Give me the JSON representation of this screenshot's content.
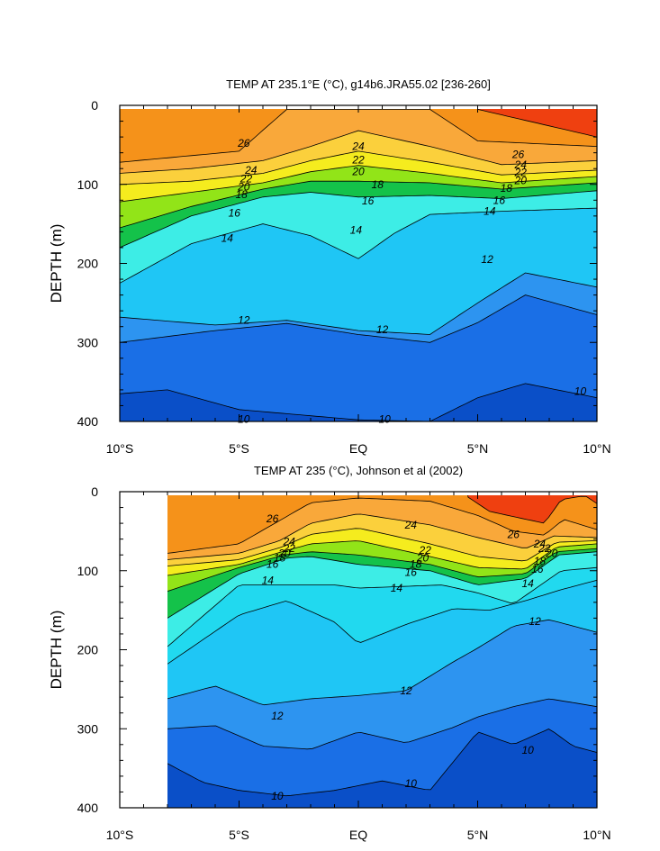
{
  "chart_data": [
    {
      "type": "contour",
      "title": "TEMP AT 235.1°E (°C), g14b6.JRA55.02 [236-260]",
      "xlabel": "",
      "ylabel": "DEPTH (m)",
      "xlim": [
        -10,
        10
      ],
      "ylim": [
        400,
        0
      ],
      "x_ticks": [
        {
          "value": -10,
          "label": "10°S"
        },
        {
          "value": -5,
          "label": "5°S"
        },
        {
          "value": 0,
          "label": "EQ"
        },
        {
          "value": 5,
          "label": "5°N"
        },
        {
          "value": 10,
          "label": "10°N"
        }
      ],
      "y_ticks": [
        {
          "value": 0,
          "label": "0"
        },
        {
          "value": 100,
          "label": "100"
        },
        {
          "value": 200,
          "label": "200"
        },
        {
          "value": 300,
          "label": "300"
        },
        {
          "value": 400,
          "label": "400"
        }
      ],
      "data_x_range": [
        -10,
        10
      ],
      "contour_interval": 1,
      "contours": [
        {
          "level": 27,
          "lat": [
            -10,
            -5,
            0,
            5,
            10
          ],
          "depth": [
            null,
            null,
            null,
            5,
            40
          ]
        },
        {
          "level": 26,
          "lat": [
            -10,
            -5,
            -3,
            -0.3,
            3,
            5,
            10
          ],
          "depth": [
            72,
            58,
            5,
            5,
            5,
            45,
            52
          ]
        },
        {
          "level": 24,
          "lat": [
            -10,
            -7,
            -4,
            -2,
            0,
            3,
            6,
            10
          ],
          "depth": [
            86,
            80,
            70,
            52,
            32,
            52,
            75,
            70
          ]
        },
        {
          "level": 22,
          "lat": [
            -10,
            -7,
            -4,
            -2,
            0,
            3,
            6,
            10
          ],
          "depth": [
            100,
            96,
            86,
            70,
            58,
            72,
            88,
            82
          ]
        },
        {
          "level": 20,
          "lat": [
            -10,
            -7,
            -4,
            -2,
            0,
            3,
            6,
            10
          ],
          "depth": [
            122,
            110,
            98,
            84,
            76,
            86,
            98,
            90
          ]
        },
        {
          "level": 18,
          "lat": [
            -10,
            -7,
            -4,
            -2,
            0,
            3,
            6,
            10
          ],
          "depth": [
            155,
            128,
            106,
            96,
            96,
            98,
            106,
            98
          ]
        },
        {
          "level": 16,
          "lat": [
            -10,
            -7,
            -4,
            -2,
            0,
            3,
            6,
            10
          ],
          "depth": [
            180,
            140,
            116,
            110,
            116,
            114,
            118,
            108
          ]
        },
        {
          "level": 14,
          "lat": [
            -10,
            -7,
            -4,
            -2,
            0,
            1.5,
            3,
            6,
            10
          ],
          "depth": [
            225,
            175,
            150,
            165,
            194,
            162,
            138,
            134,
            130
          ]
        },
        {
          "level": 12,
          "lat": [
            -10,
            -6,
            -3,
            0,
            3,
            5,
            7,
            10
          ],
          "depth": [
            268,
            278,
            272,
            285,
            290,
            250,
            212,
            230
          ]
        },
        {
          "level": 11,
          "lat": [
            -10,
            -6,
            -3,
            0,
            3,
            5,
            7,
            10
          ],
          "depth": [
            300,
            285,
            276,
            290,
            300,
            275,
            240,
            265
          ]
        },
        {
          "level": 10,
          "lat": [
            -10,
            -8,
            -5,
            0,
            3,
            5,
            7,
            10
          ],
          "depth": [
            365,
            360,
            385,
            398,
            400,
            370,
            352,
            370
          ]
        }
      ],
      "contour_labels": [
        {
          "text": "26",
          "x": -4.8,
          "y": 48
        },
        {
          "text": "24",
          "x": -4.5,
          "y": 82
        },
        {
          "text": "22",
          "x": -4.7,
          "y": 93
        },
        {
          "text": "20",
          "x": -4.8,
          "y": 103
        },
        {
          "text": "18",
          "x": -4.9,
          "y": 113
        },
        {
          "text": "16",
          "x": -5.2,
          "y": 136
        },
        {
          "text": "14",
          "x": -5.5,
          "y": 168
        },
        {
          "text": "24",
          "x": 0,
          "y": 52
        },
        {
          "text": "22",
          "x": 0,
          "y": 69
        },
        {
          "text": "20",
          "x": 0,
          "y": 84
        },
        {
          "text": "18",
          "x": 0.8,
          "y": 100
        },
        {
          "text": "16",
          "x": 0.4,
          "y": 121
        },
        {
          "text": "14",
          "x": -0.1,
          "y": 158
        },
        {
          "text": "26",
          "x": 6.7,
          "y": 62
        },
        {
          "text": "24",
          "x": 6.8,
          "y": 75
        },
        {
          "text": "22",
          "x": 6.8,
          "y": 85
        },
        {
          "text": "20",
          "x": 6.8,
          "y": 95
        },
        {
          "text": "18",
          "x": 6.2,
          "y": 105
        },
        {
          "text": "16",
          "x": 5.9,
          "y": 120
        },
        {
          "text": "14",
          "x": 5.5,
          "y": 134
        },
        {
          "text": "12",
          "x": 5.4,
          "y": 195
        },
        {
          "text": "12",
          "x": -4.8,
          "y": 272
        },
        {
          "text": "12",
          "x": 1,
          "y": 284
        },
        {
          "text": "10",
          "x": -4.8,
          "y": 397
        },
        {
          "text": "10",
          "x": 1.1,
          "y": 397
        },
        {
          "text": "10",
          "x": 9.3,
          "y": 362
        }
      ]
    },
    {
      "type": "contour",
      "title": "TEMP AT 235 (°C), Johnson et al (2002)",
      "xlabel": "",
      "ylabel": "DEPTH (m)",
      "xlim": [
        -10,
        10
      ],
      "ylim": [
        400,
        0
      ],
      "x_ticks": [
        {
          "value": -10,
          "label": "10°S"
        },
        {
          "value": -5,
          "label": "5°S"
        },
        {
          "value": 0,
          "label": "EQ"
        },
        {
          "value": 5,
          "label": "5°N"
        },
        {
          "value": 10,
          "label": "10°N"
        }
      ],
      "y_ticks": [
        {
          "value": 0,
          "label": "0"
        },
        {
          "value": 100,
          "label": "100"
        },
        {
          "value": 200,
          "label": "200"
        },
        {
          "value": 300,
          "label": "300"
        },
        {
          "value": 400,
          "label": "400"
        }
      ],
      "data_x_range": [
        -8,
        10
      ],
      "contour_interval": 1,
      "contours": [
        {
          "level": 27,
          "lat": [
            -8,
            4.5,
            5.5,
            7.8,
            8.5,
            9.5,
            10
          ],
          "depth": [
            null,
            5,
            25,
            40,
            10,
            5,
            15
          ]
        },
        {
          "level": 26,
          "lat": [
            -8,
            -5,
            -3.5,
            -2,
            0,
            3,
            5,
            6.5,
            7.8,
            8.6,
            10
          ],
          "depth": [
            78,
            66,
            40,
            14,
            8,
            12,
            30,
            50,
            55,
            35,
            48
          ]
        },
        {
          "level": 24,
          "lat": [
            -8,
            -5,
            -3.3,
            -2,
            0,
            3,
            5,
            7,
            8.2,
            10
          ],
          "depth": [
            86,
            78,
            62,
            40,
            28,
            42,
            58,
            72,
            56,
            58
          ]
        },
        {
          "level": 22,
          "lat": [
            -8,
            -5,
            -3.2,
            -2,
            0,
            3,
            5,
            7,
            8.3,
            10
          ],
          "depth": [
            94,
            86,
            70,
            54,
            46,
            66,
            82,
            88,
            64,
            62
          ]
        },
        {
          "level": 20,
          "lat": [
            -8,
            -5,
            -3.2,
            -2,
            0,
            3,
            5,
            7,
            8.3,
            10
          ],
          "depth": [
            106,
            92,
            76,
            66,
            62,
            82,
            96,
            98,
            70,
            66
          ]
        },
        {
          "level": 18,
          "lat": [
            -8,
            -5,
            -3.1,
            -2,
            0,
            3,
            5,
            7,
            8.3,
            10
          ],
          "depth": [
            126,
            96,
            80,
            76,
            80,
            92,
            108,
            104,
            76,
            72
          ]
        },
        {
          "level": 16,
          "lat": [
            -8,
            -5,
            -3,
            -2,
            0,
            3,
            5,
            7,
            8.4,
            10
          ],
          "depth": [
            160,
            104,
            84,
            82,
            92,
            100,
            118,
            110,
            80,
            76
          ]
        },
        {
          "level": 14,
          "lat": [
            -8,
            -5,
            -3,
            -1,
            0,
            1.8,
            3.5,
            5,
            6.5,
            8.5,
            10
          ],
          "depth": [
            196,
            118,
            118,
            118,
            122,
            120,
            118,
            128,
            142,
            100,
            96
          ]
        },
        {
          "level": 13,
          "lat": [
            -8,
            -5,
            -3,
            -1,
            0,
            2,
            4,
            5.5,
            7,
            8.5,
            10
          ],
          "depth": [
            218,
            156,
            138,
            165,
            192,
            168,
            148,
            150,
            138,
            124,
            112
          ]
        },
        {
          "level": 12,
          "lat": [
            -8,
            -6,
            -4,
            -2,
            0,
            2,
            4,
            5,
            6.5,
            8,
            10
          ],
          "depth": [
            262,
            246,
            270,
            262,
            258,
            252,
            215,
            198,
            170,
            162,
            178
          ]
        },
        {
          "level": 11,
          "lat": [
            -8,
            -6,
            -4,
            -2,
            0,
            2,
            4,
            5,
            6.5,
            8,
            10
          ],
          "depth": [
            300,
            296,
            322,
            326,
            304,
            318,
            298,
            285,
            272,
            262,
            272
          ]
        },
        {
          "level": 10,
          "lat": [
            -8,
            -6.5,
            -5,
            -3,
            -1,
            1,
            3,
            5,
            6.5,
            8,
            9,
            10
          ],
          "depth": [
            344,
            368,
            378,
            385,
            378,
            366,
            378,
            304,
            320,
            300,
            322,
            330
          ]
        }
      ],
      "contour_labels": [
        {
          "text": "26",
          "x": -3.6,
          "y": 34
        },
        {
          "text": "24",
          "x": -2.9,
          "y": 63
        },
        {
          "text": "22",
          "x": -2.9,
          "y": 72
        },
        {
          "text": "20",
          "x": -3.1,
          "y": 78
        },
        {
          "text": "18",
          "x": -3.3,
          "y": 84
        },
        {
          "text": "16",
          "x": -3.6,
          "y": 92
        },
        {
          "text": "14",
          "x": -3.8,
          "y": 112
        },
        {
          "text": "24",
          "x": 2.2,
          "y": 42
        },
        {
          "text": "22",
          "x": 2.8,
          "y": 74
        },
        {
          "text": "20",
          "x": 2.7,
          "y": 84
        },
        {
          "text": "18",
          "x": 2.4,
          "y": 92
        },
        {
          "text": "16",
          "x": 2.2,
          "y": 102
        },
        {
          "text": "14",
          "x": 1.6,
          "y": 122
        },
        {
          "text": "26",
          "x": 6.5,
          "y": 54
        },
        {
          "text": "24",
          "x": 7.6,
          "y": 66
        },
        {
          "text": "22",
          "x": 7.8,
          "y": 72
        },
        {
          "text": "20",
          "x": 8.1,
          "y": 78
        },
        {
          "text": "18",
          "x": 7.6,
          "y": 88
        },
        {
          "text": "16",
          "x": 7.5,
          "y": 98
        },
        {
          "text": "14",
          "x": 7.1,
          "y": 116
        },
        {
          "text": "12",
          "x": 7.4,
          "y": 164
        },
        {
          "text": "12",
          "x": 2.0,
          "y": 252
        },
        {
          "text": "12",
          "x": -3.4,
          "y": 284
        },
        {
          "text": "10",
          "x": -3.4,
          "y": 385
        },
        {
          "text": "10",
          "x": 2.2,
          "y": 369
        },
        {
          "text": "10",
          "x": 7.1,
          "y": 327
        }
      ]
    }
  ],
  "colors": {
    "fill_palette": [
      {
        "level": 9,
        "color": "#0a4fc8"
      },
      {
        "level": 10,
        "color": "#1a6fe6"
      },
      {
        "level": 11,
        "color": "#2d94f0"
      },
      {
        "level": 12,
        "color": "#1fc6f5"
      },
      {
        "level": 13,
        "color": "#21d9ef"
      },
      {
        "level": 14,
        "color": "#3dede6"
      },
      {
        "level": 15,
        "color": "#30d59a"
      },
      {
        "level": 16,
        "color": "#14c24a"
      },
      {
        "level": 17,
        "color": "#3ed020"
      },
      {
        "level": 18,
        "color": "#92e418"
      },
      {
        "level": 19,
        "color": "#d2f01a"
      },
      {
        "level": 20,
        "color": "#f5ec1e"
      },
      {
        "level": 21,
        "color": "#fce23e"
      },
      {
        "level": 22,
        "color": "#fbd03c"
      },
      {
        "level": 23,
        "color": "#f9bd44"
      },
      {
        "level": 24,
        "color": "#f9a83a"
      },
      {
        "level": 25,
        "color": "#f8962c"
      },
      {
        "level": 26,
        "color": "#f5921a"
      },
      {
        "level": 27,
        "color": "#ef4010"
      }
    ],
    "line_color": "#000000",
    "background": "#ffffff"
  }
}
